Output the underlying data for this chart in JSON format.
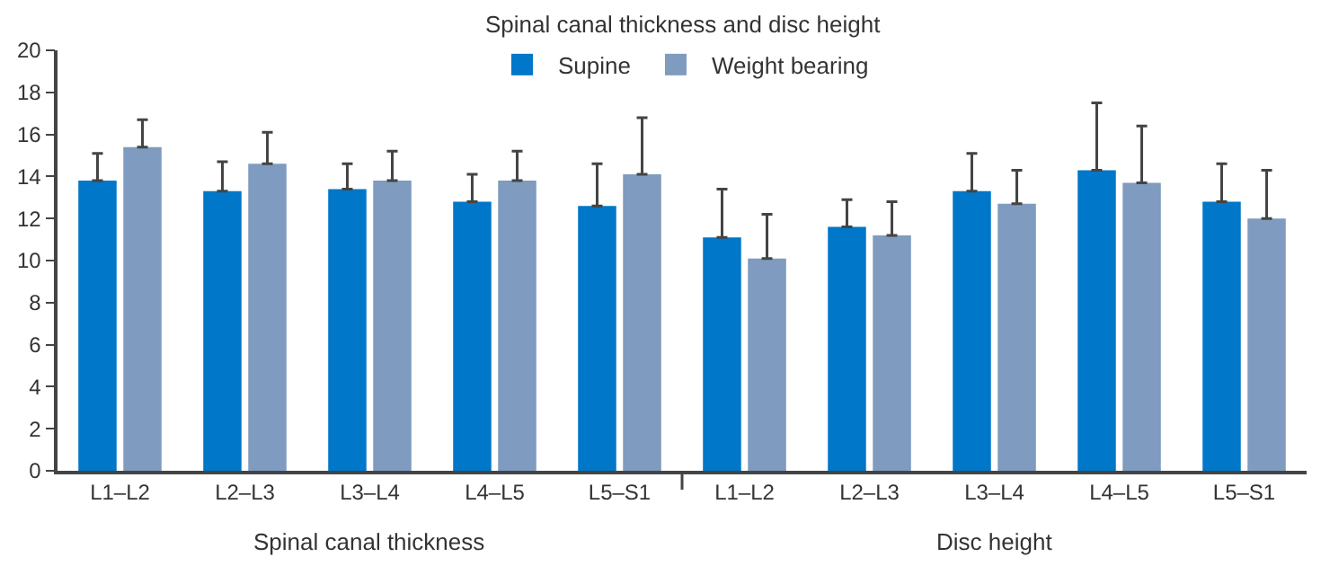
{
  "chart_data": {
    "type": "bar",
    "legend_title": "Spinal canal thickness and disc height",
    "categories": [
      "L1–L2",
      "L2–L3",
      "L3–L4",
      "L4–L5",
      "L5–S1",
      "L1–L2",
      "L2–L3",
      "L3–L4",
      "L4–L5",
      "L5–S1"
    ],
    "series": [
      {
        "name": "Supine",
        "color": "#0077c8",
        "values": [
          13.8,
          13.3,
          13.4,
          12.8,
          12.6,
          11.1,
          11.6,
          13.3,
          14.3,
          12.8
        ],
        "errors": [
          [
            13.8,
            15.1
          ],
          [
            13.3,
            14.7
          ],
          [
            13.4,
            14.6
          ],
          [
            12.8,
            14.1
          ],
          [
            12.6,
            14.6
          ],
          [
            11.1,
            13.4
          ],
          [
            11.6,
            12.9
          ],
          [
            13.3,
            15.1
          ],
          [
            14.3,
            17.5
          ],
          [
            12.8,
            14.6
          ]
        ]
      },
      {
        "name": "Weight bearing",
        "color": "#7f9bbf",
        "values": [
          15.4,
          14.6,
          13.8,
          13.8,
          14.1,
          10.1,
          11.2,
          12.7,
          13.7,
          12.0
        ],
        "errors": [
          [
            15.4,
            16.7
          ],
          [
            14.6,
            16.1
          ],
          [
            13.8,
            15.2
          ],
          [
            13.8,
            15.2
          ],
          [
            14.1,
            16.8
          ],
          [
            10.1,
            12.2
          ],
          [
            11.2,
            12.8
          ],
          [
            12.7,
            14.3
          ],
          [
            13.7,
            16.4
          ],
          [
            12.0,
            14.3
          ]
        ]
      }
    ],
    "ylim": [
      0,
      20
    ],
    "yticks": [
      0,
      2,
      4,
      6,
      8,
      10,
      12,
      14,
      16,
      18,
      20
    ],
    "annotations": [
      "Spinal canal thickness",
      "Disc height"
    ],
    "grid": false,
    "legend": "top"
  }
}
